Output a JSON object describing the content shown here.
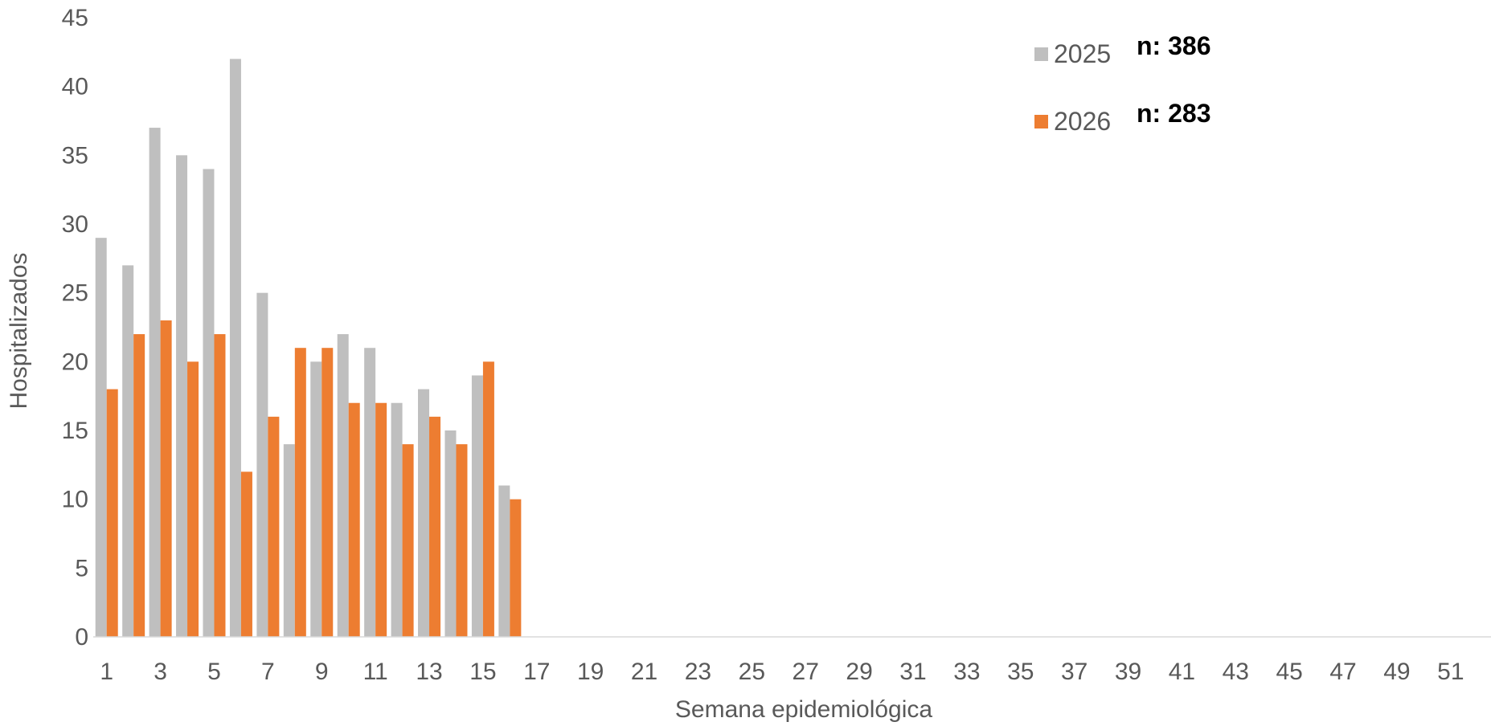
{
  "chart_data": {
    "type": "bar",
    "title": "",
    "xlabel": "Semana epidemiológica",
    "ylabel": "Hospitalizados",
    "ylim": [
      0,
      45
    ],
    "yticks": [
      0,
      5,
      10,
      15,
      20,
      25,
      30,
      35,
      40,
      45
    ],
    "xlim": [
      1,
      52
    ],
    "xtick_labels": [
      1,
      3,
      5,
      7,
      9,
      11,
      13,
      15,
      17,
      19,
      21,
      23,
      25,
      27,
      29,
      31,
      33,
      35,
      37,
      39,
      41,
      43,
      45,
      47,
      49,
      51
    ],
    "categories": [
      1,
      2,
      3,
      4,
      5,
      6,
      7,
      8,
      9,
      10,
      11,
      12,
      13,
      14,
      15,
      16
    ],
    "series": [
      {
        "name": "2025",
        "color": "#bfbfbf",
        "values": [
          29,
          27,
          37,
          35,
          34,
          42,
          25,
          14,
          20,
          22,
          21,
          17,
          18,
          15,
          19,
          11
        ],
        "n_label": "n: 386"
      },
      {
        "name": "2026",
        "color": "#ed7d31",
        "values": [
          18,
          22,
          23,
          20,
          22,
          12,
          16,
          21,
          21,
          17,
          17,
          14,
          16,
          14,
          20,
          10
        ],
        "n_label": "n: 283"
      }
    ],
    "grid": false,
    "legend_position": "top-right"
  }
}
